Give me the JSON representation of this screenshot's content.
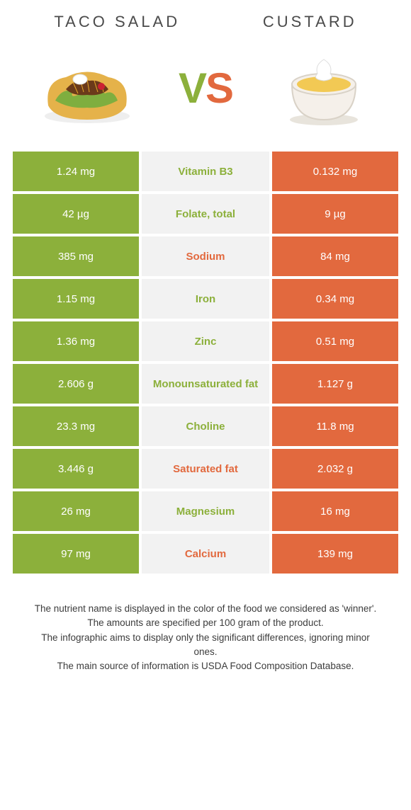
{
  "header": {
    "left_title": "TACO SALAD",
    "right_title": "CUSTARD",
    "vs_v": "V",
    "vs_s": "S"
  },
  "colors": {
    "green": "#8cb03b",
    "orange": "#e2693e",
    "mid_bg": "#f2f2f2",
    "text": "#4a4a4a",
    "footer_text": "#3c3c3c"
  },
  "rows": [
    {
      "left": "1.24 mg",
      "label": "Vitamin B3",
      "right": "0.132 mg",
      "winner": "green"
    },
    {
      "left": "42 µg",
      "label": "Folate, total",
      "right": "9 µg",
      "winner": "green"
    },
    {
      "left": "385 mg",
      "label": "Sodium",
      "right": "84 mg",
      "winner": "orange"
    },
    {
      "left": "1.15 mg",
      "label": "Iron",
      "right": "0.34 mg",
      "winner": "green"
    },
    {
      "left": "1.36 mg",
      "label": "Zinc",
      "right": "0.51 mg",
      "winner": "green"
    },
    {
      "left": "2.606 g",
      "label": "Monounsaturated fat",
      "right": "1.127 g",
      "winner": "green"
    },
    {
      "left": "23.3 mg",
      "label": "Choline",
      "right": "11.8 mg",
      "winner": "green"
    },
    {
      "left": "3.446 g",
      "label": "Saturated fat",
      "right": "2.032 g",
      "winner": "orange"
    },
    {
      "left": "26 mg",
      "label": "Magnesium",
      "right": "16 mg",
      "winner": "green"
    },
    {
      "left": "97 mg",
      "label": "Calcium",
      "right": "139 mg",
      "winner": "orange"
    }
  ],
  "footer": {
    "line1": "The nutrient name is displayed in the color of the food we considered as 'winner'.",
    "line2": "The amounts are specified per 100 gram of the product.",
    "line3": "The infographic aims to display only the significant differences, ignoring minor ones.",
    "line4": "The main source of information is USDA Food Composition Database."
  }
}
